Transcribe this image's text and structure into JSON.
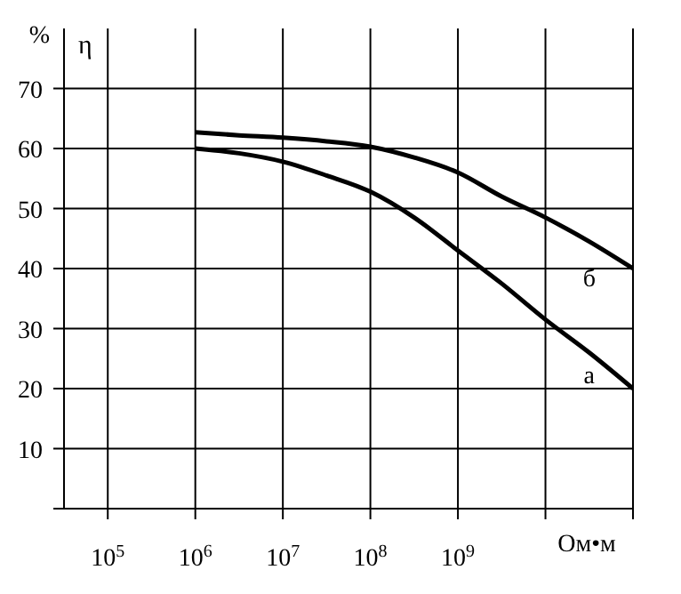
{
  "chart_data": {
    "type": "line",
    "ylabel": "%",
    "xlabel": "Ом•м",
    "annotations": [
      "η"
    ],
    "log": "x",
    "grid": true,
    "marker": "none",
    "line_style": "solid",
    "legend": false,
    "xlim": [
      31623,
      100000000000
    ],
    "xticks": [
      {
        "value": 100000,
        "label": "10$^{5}$"
      },
      {
        "value": 1000000,
        "label": "10$^{6}$"
      },
      {
        "value": 10000000,
        "label": "10$^{7}$"
      },
      {
        "value": 100000000,
        "label": "10$^{8}$"
      },
      {
        "value": 1000000000,
        "label": "10$^{9}$"
      },
      {
        "value": 10000000000,
        "label": null
      },
      {
        "value": 100000000000,
        "label": null
      }
    ],
    "ylim": [
      0,
      80
    ],
    "yticks": [
      {
        "value": 0,
        "label": null
      },
      10,
      20,
      30,
      40,
      50,
      60,
      70
    ],
    "x": [
      1000000,
      3162278,
      10000000,
      31622777,
      100000000,
      316227766,
      1000000000,
      3162277660,
      10000000000,
      31622776602,
      100000000000
    ],
    "series": [
      {
        "name": "б",
        "color": "#000000",
        "values": [
          62.7,
          62.2,
          61.8,
          61.2,
          60.3,
          58.5,
          56,
          52,
          48.5,
          44.5,
          40
        ]
      },
      {
        "name": "а",
        "color": "#000000",
        "values": [
          60,
          59.2,
          57.8,
          55.5,
          52.8,
          48.5,
          43,
          37.5,
          31.5,
          26,
          20
        ]
      }
    ]
  }
}
